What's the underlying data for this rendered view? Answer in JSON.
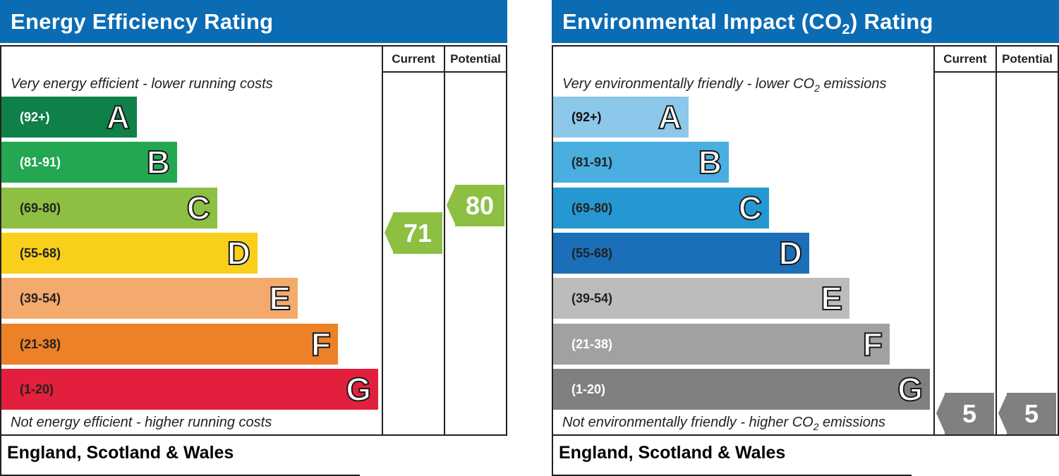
{
  "chart_data": [
    {
      "type": "bar",
      "title": "Energy Efficiency Rating",
      "columns": [
        "Current",
        "Potential"
      ],
      "top_caption": "Very energy efficient - lower running costs",
      "bottom_caption": "Not energy efficient - higher running costs",
      "footer": "England, Scotland & Wales",
      "bands": [
        {
          "letter": "A",
          "range": "(92+)",
          "color": "#0f8048",
          "text_color": "#ffffff"
        },
        {
          "letter": "B",
          "range": "(81-91)",
          "color": "#24a751",
          "text_color": "#ffffff"
        },
        {
          "letter": "C",
          "range": "(69-80)",
          "color": "#8dbf42",
          "text_color": "#222222"
        },
        {
          "letter": "D",
          "range": "(55-68)",
          "color": "#f8cf1a",
          "text_color": "#222222"
        },
        {
          "letter": "E",
          "range": "(39-54)",
          "color": "#f3aa6c",
          "text_color": "#222222"
        },
        {
          "letter": "F",
          "range": "(21-38)",
          "color": "#ec8127",
          "text_color": "#222222"
        },
        {
          "letter": "G",
          "range": "(1-20)",
          "color": "#e21f3c",
          "text_color": "#222222"
        }
      ],
      "current": {
        "value": "71",
        "numeric": 71,
        "color": "#8dbf42"
      },
      "potential": {
        "value": "80",
        "numeric": 80,
        "color": "#8dbf42"
      }
    },
    {
      "type": "bar",
      "title_main": "Environmental Impact (CO",
      "title_sub": "2",
      "title_end": ") Rating",
      "columns": [
        "Current",
        "Potential"
      ],
      "top_caption_main": "Very environmentally friendly - lower CO",
      "top_caption_sub": "2",
      "top_caption_end": " emissions",
      "bottom_caption_main": "Not environmentally friendly - higher CO",
      "bottom_caption_sub": "2",
      "bottom_caption_end": " emissions",
      "footer": "England, Scotland & Wales",
      "bands": [
        {
          "letter": "A",
          "range": "(92+)",
          "color": "#8dc7ea",
          "text_color": "#111111"
        },
        {
          "letter": "B",
          "range": "(81-91)",
          "color": "#4aaee0",
          "text_color": "#222222"
        },
        {
          "letter": "C",
          "range": "(69-80)",
          "color": "#2598d2",
          "text_color": "#222222"
        },
        {
          "letter": "D",
          "range": "(55-68)",
          "color": "#1a6fb8",
          "text_color": "#222222"
        },
        {
          "letter": "E",
          "range": "(39-54)",
          "color": "#bcbcbb",
          "text_color": "#222222"
        },
        {
          "letter": "F",
          "range": "(21-38)",
          "color": "#a1a1a0",
          "text_color": "#ffffff"
        },
        {
          "letter": "G",
          "range": "(1-20)",
          "color": "#808080",
          "text_color": "#ffffff"
        }
      ],
      "current": {
        "value": "5",
        "numeric": 5,
        "color": "#808080"
      },
      "potential": {
        "value": "5",
        "numeric": 5,
        "color": "#808080"
      }
    }
  ]
}
